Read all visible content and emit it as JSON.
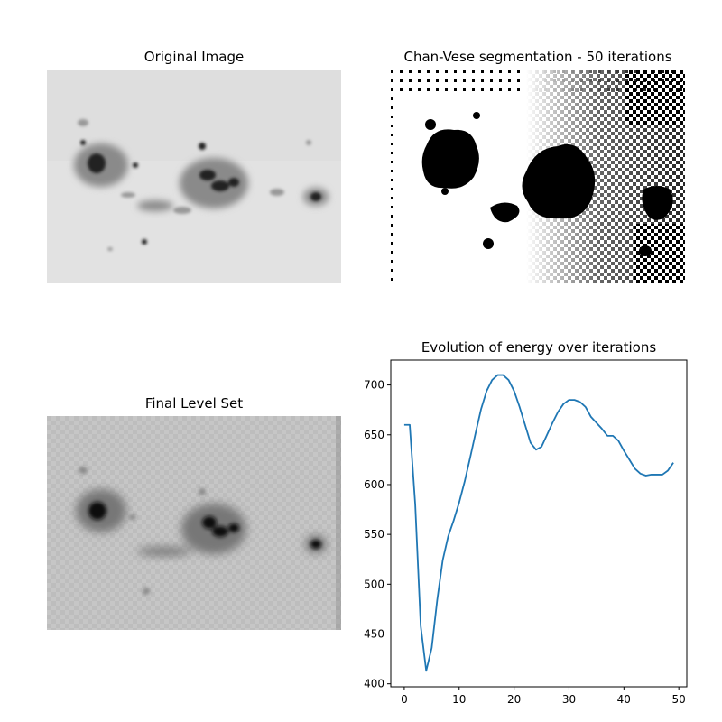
{
  "panels": {
    "original": {
      "title": "Original Image"
    },
    "segmentation": {
      "title": "Chan-Vese segmentation - 50 iterations"
    },
    "levelset": {
      "title": "Final Level Set"
    }
  },
  "chart_data": {
    "type": "line",
    "title": "Evolution of energy over iterations",
    "xlabel": "",
    "ylabel": "",
    "xlim": [
      -2.45,
      51.45
    ],
    "ylim": [
      397,
      725
    ],
    "xticks": [
      0,
      10,
      20,
      30,
      40,
      50
    ],
    "yticks": [
      400,
      450,
      500,
      550,
      600,
      650,
      700
    ],
    "grid": false,
    "line_color": "#1f77b4",
    "series": [
      {
        "x": [
          0,
          1,
          2,
          3,
          4,
          5,
          6,
          7,
          8,
          9,
          10,
          11,
          12,
          13,
          14,
          15,
          16,
          17,
          18,
          19,
          20,
          21,
          22,
          23,
          24,
          25,
          26,
          27,
          28,
          29,
          30,
          31,
          32,
          33,
          34,
          35,
          36,
          37,
          38,
          39,
          40,
          41,
          42,
          43,
          44,
          45,
          46,
          47,
          48,
          49
        ],
        "values": [
          660,
          660,
          580,
          458,
          413,
          436,
          484,
          524,
          548,
          564,
          582,
          603,
          627,
          652,
          676,
          694,
          705,
          710,
          710,
          705,
          694,
          678,
          660,
          642,
          635,
          638,
          650,
          662,
          673,
          681,
          685,
          685,
          683,
          678,
          668,
          662,
          656,
          649,
          649,
          644,
          634,
          625,
          616,
          611,
          609,
          610,
          610,
          610,
          614,
          622
        ]
      }
    ]
  }
}
